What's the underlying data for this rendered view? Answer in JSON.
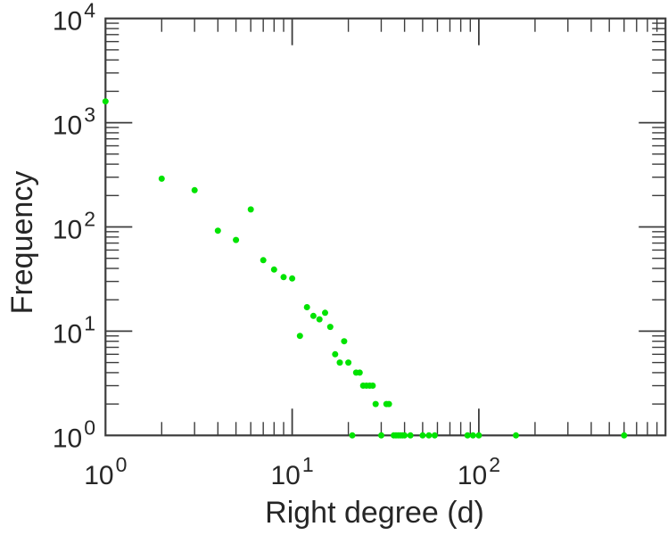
{
  "chart_data": {
    "type": "scatter",
    "title": "",
    "xlabel": "Right degree (d)",
    "ylabel": "Frequency",
    "x_scale": "log",
    "y_scale": "log",
    "xlim": [
      1,
      1000
    ],
    "ylim": [
      1,
      10000
    ],
    "grid": false,
    "legend": "none",
    "tick_label_base": "10",
    "x_labeled_exponents": [
      0,
      1,
      2
    ],
    "y_labeled_exponents": [
      0,
      1,
      2,
      3,
      4
    ],
    "marker_color": "#00e300",
    "axis_color": "#3c3c3c",
    "text_color": "#262626",
    "background_color": "#ffffff",
    "points": [
      [
        1,
        1600
      ],
      [
        2,
        290
      ],
      [
        3,
        225
      ],
      [
        4,
        92
      ],
      [
        5,
        75
      ],
      [
        6,
        147
      ],
      [
        7,
        48
      ],
      [
        8,
        39
      ],
      [
        9,
        33
      ],
      [
        10,
        32
      ],
      [
        11,
        9
      ],
      [
        12,
        17
      ],
      [
        13,
        14
      ],
      [
        14,
        13
      ],
      [
        15,
        15
      ],
      [
        16,
        11
      ],
      [
        17,
        6
      ],
      [
        18,
        5
      ],
      [
        19,
        8
      ],
      [
        20,
        5
      ],
      [
        21,
        1
      ],
      [
        22,
        4
      ],
      [
        23,
        4
      ],
      [
        24,
        3
      ],
      [
        25,
        3
      ],
      [
        26,
        3
      ],
      [
        27,
        3
      ],
      [
        28,
        2
      ],
      [
        30,
        1
      ],
      [
        32,
        2
      ],
      [
        33,
        2
      ],
      [
        35,
        1
      ],
      [
        36,
        1
      ],
      [
        37,
        1
      ],
      [
        38,
        1
      ],
      [
        39,
        1
      ],
      [
        40,
        1
      ],
      [
        43,
        1
      ],
      [
        50,
        1
      ],
      [
        54,
        1
      ],
      [
        58,
        1
      ],
      [
        87,
        1
      ],
      [
        93,
        1
      ],
      [
        100,
        1
      ],
      [
        158,
        1
      ],
      [
        600,
        1
      ]
    ]
  }
}
